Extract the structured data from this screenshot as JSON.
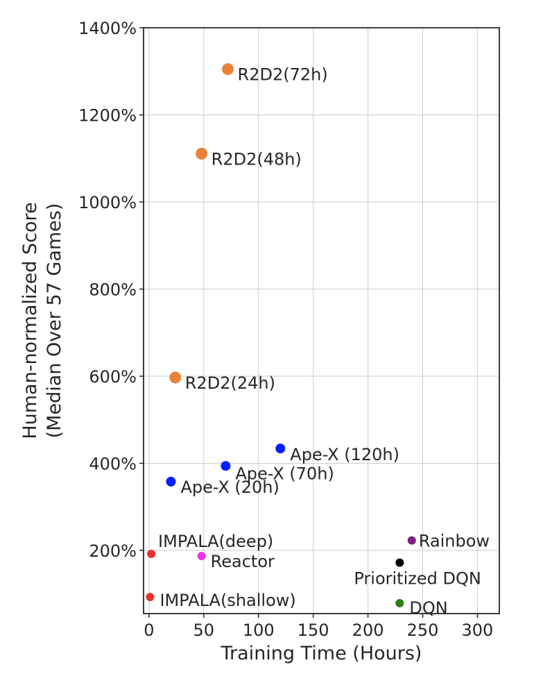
{
  "chart_data": {
    "type": "scatter",
    "xlabel": "Training Time (Hours)",
    "ylabel_lines": [
      "Human-normalized Score",
      "(Median Over 57 Games)"
    ],
    "xlim": [
      -5,
      320
    ],
    "ylim": [
      55,
      1400
    ],
    "x_ticks": [
      0,
      50,
      100,
      150,
      200,
      250,
      300
    ],
    "x_tick_labels": [
      "0",
      "50",
      "100",
      "150",
      "200",
      "250",
      "300"
    ],
    "y_ticks": [
      200,
      400,
      600,
      800,
      1000,
      1200,
      1400
    ],
    "y_tick_labels": [
      "200%",
      "400%",
      "600%",
      "800%",
      "1000%",
      "1200%",
      "1400%"
    ],
    "grid": true,
    "points": [
      {
        "label": "R2D2(72h)",
        "x": 72,
        "y": 1305,
        "color": "#e8833a",
        "size": "large"
      },
      {
        "label": "R2D2(48h)",
        "x": 48,
        "y": 1111,
        "color": "#e8833a",
        "size": "large"
      },
      {
        "label": "R2D2(24h)",
        "x": 24,
        "y": 597,
        "color": "#e8833a",
        "size": "large"
      },
      {
        "label": "Ape-X (120h)",
        "x": 120,
        "y": 434,
        "color": "#0020ff",
        "size": "medium"
      },
      {
        "label": "Ape-X (70h)",
        "x": 70,
        "y": 394,
        "color": "#0020ff",
        "size": "medium"
      },
      {
        "label": "Ape-X (20h)",
        "x": 20,
        "y": 358,
        "color": "#0020ff",
        "size": "medium"
      },
      {
        "label": "IMPALA(deep)",
        "x": 2,
        "y": 192,
        "color": "#e8332a",
        "size": "small"
      },
      {
        "label": "IMPALA(shallow)",
        "x": 1,
        "y": 93,
        "color": "#e8332a",
        "size": "small"
      },
      {
        "label": "Reactor",
        "x": 48,
        "y": 187,
        "color": "#f032f0",
        "size": "small"
      },
      {
        "label": "Rainbow",
        "x": 240,
        "y": 223,
        "color": "#7b2181",
        "size": "small"
      },
      {
        "label": "Prioritized DQN",
        "x": 229,
        "y": 172,
        "color": "#000000",
        "size": "small"
      },
      {
        "label": "DQN",
        "x": 229,
        "y": 79,
        "color": "#2e7d1c",
        "size": "small"
      }
    ]
  }
}
